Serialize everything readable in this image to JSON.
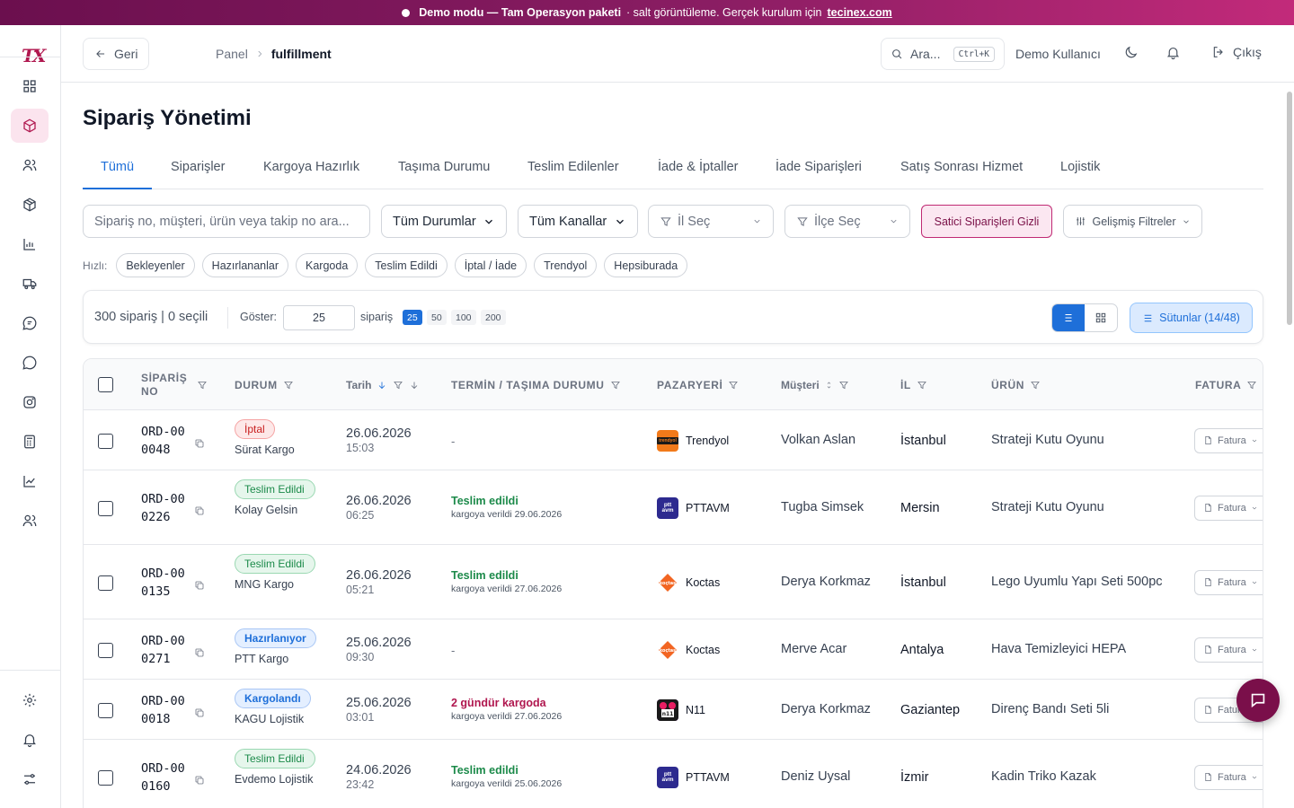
{
  "banner": {
    "prefix": "Demo modu — Tam Operasyon paketi",
    "middle": "· salt görüntüleme. Gerçek kurulum için",
    "link": "tecinex.com"
  },
  "brand": {
    "logo_text": "TX",
    "accent": "#b0174f"
  },
  "topbar": {
    "back_label": "Geri",
    "crumbs": [
      "Panel",
      "fulfillment"
    ],
    "search_label": "Ara...",
    "search_shortcut": "Ctrl+K",
    "user": "Demo Kullanıcı",
    "logout_label": "Çıkış"
  },
  "page": {
    "title": "Sipariş Yönetimi"
  },
  "tabs": [
    {
      "label": "Tümü"
    },
    {
      "label": "Siparişler"
    },
    {
      "label": "Kargoya Hazırlık"
    },
    {
      "label": "Taşıma Durumu"
    },
    {
      "label": "Teslim Edilenler"
    },
    {
      "label": "İade & İptaller"
    },
    {
      "label": "İade Siparişleri"
    },
    {
      "label": "Satış Sonrası Hizmet"
    },
    {
      "label": "Lojistik"
    }
  ],
  "filters": {
    "search_placeholder": "Sipariş no, müşteri, ürün veya takip no ara...",
    "status": "Tüm Durumlar",
    "channel": "Tüm Kanallar",
    "city": "İl Seç",
    "district": "İlçe Seç",
    "seller_toggle": "Satici Siparişleri Gizli",
    "advanced": "Gelişmiş Filtreler"
  },
  "quick": {
    "label": "Hızlı:",
    "chips": [
      "Bekleyenler",
      "Hazırlananlar",
      "Kargoda",
      "Teslim Edildi",
      "İptal / İade",
      "Trendyol",
      "Hepsiburada"
    ]
  },
  "toolbar": {
    "count_text": "300 sipariş | 0 seçili",
    "show_label": "Göster:",
    "page_size": "25",
    "unit_label": "sipariş",
    "page_options": [
      "25",
      "50",
      "100",
      "200"
    ],
    "columns_label": "Sütunlar (14/48)"
  },
  "table": {
    "headers": {
      "order_no": "SİPARİŞ NO",
      "status": "DURUM",
      "date": "Tarih",
      "termin": "TERMİN / TAŞIMA DURUMU",
      "marketplace": "PAZARYERİ",
      "customer": "Müşteri",
      "city": "İL",
      "product": "ÜRÜN",
      "invoice": "FATURA"
    },
    "invoice_label": "Fatura",
    "rows": [
      {
        "order_no": "ORD-000048",
        "status": "İptal",
        "status_kind": "iptal",
        "carrier": "Sürat Kargo",
        "date": "26.06.2026",
        "time": "15:03",
        "termin": "-",
        "termin_kind": "none",
        "termin_sub": "",
        "marketplace": "Trendyol",
        "mp_logo": "trendyol",
        "customer": "Volkan Aslan",
        "city": "İstanbul",
        "product": "Strateji Kutu Oyunu"
      },
      {
        "order_no": "ORD-000226",
        "status": "Teslim Edildi",
        "status_kind": "teslim",
        "carrier": "Kolay Gelsin",
        "date": "26.06.2026",
        "time": "06:25",
        "termin": "Teslim edildi",
        "termin_kind": "ok",
        "termin_sub": "kargoya verildi 29.06.2026",
        "marketplace": "PTTAVM",
        "mp_logo": "pttavm",
        "customer": "Tugba Simsek",
        "city": "Mersin",
        "product": "Strateji Kutu Oyunu"
      },
      {
        "order_no": "ORD-000135",
        "status": "Teslim Edildi",
        "status_kind": "teslim",
        "carrier": "MNG Kargo",
        "date": "26.06.2026",
        "time": "05:21",
        "termin": "Teslim edildi",
        "termin_kind": "ok",
        "termin_sub": "kargoya verildi 27.06.2026",
        "marketplace": "Koctas",
        "mp_logo": "koctas",
        "customer": "Derya Korkmaz",
        "city": "İstanbul",
        "product": "Lego Uyumlu Yapı Seti 500pc"
      },
      {
        "order_no": "ORD-000271",
        "status": "Hazırlanıyor",
        "status_kind": "hazir",
        "carrier": "PTT Kargo",
        "date": "25.06.2026",
        "time": "09:30",
        "termin": "-",
        "termin_kind": "none",
        "termin_sub": "",
        "marketplace": "Koctas",
        "mp_logo": "koctas",
        "customer": "Merve Acar",
        "city": "Antalya",
        "product": "Hava Temizleyici HEPA"
      },
      {
        "order_no": "ORD-000018",
        "status": "Kargolandı",
        "status_kind": "kargo",
        "carrier": "KAGU Lojistik",
        "date": "25.06.2026",
        "time": "03:01",
        "termin": "2 gündür kargoda",
        "termin_kind": "transit",
        "termin_sub": "kargoya verildi 27.06.2026",
        "marketplace": "N11",
        "mp_logo": "n11",
        "customer": "Derya Korkmaz",
        "city": "Gaziantep",
        "product": "Direnç Bandı Seti 5li"
      },
      {
        "order_no": "ORD-000160",
        "status": "Teslim Edildi",
        "status_kind": "teslim",
        "carrier": "Evdemo Lojistik",
        "date": "24.06.2026",
        "time": "23:42",
        "termin": "Teslim edildi",
        "termin_kind": "ok",
        "termin_sub": "kargoya verildi 25.06.2026",
        "marketplace": "PTTAVM",
        "mp_logo": "pttavm",
        "customer": "Deniz Uysal",
        "city": "İzmir",
        "product": "Kadin Triko Kazak"
      }
    ]
  },
  "colors": {
    "primary": "#1e6fd9",
    "ok": "#1c8a4a",
    "transit": "#b0174f",
    "fab": "#7a0f4a"
  }
}
